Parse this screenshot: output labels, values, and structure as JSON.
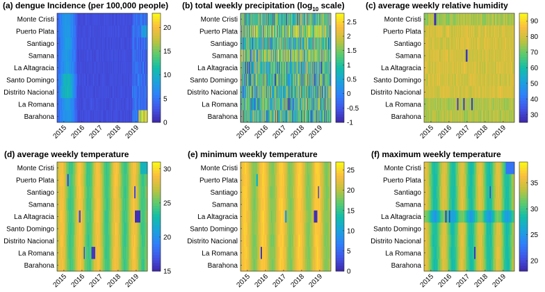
{
  "figure": {
    "background": "#ffffff",
    "colormap": [
      "#3e26a8",
      "#4254e6",
      "#2f7ffb",
      "#1ba3dc",
      "#12bea9",
      "#5ccb6d",
      "#c1c23e",
      "#fcbe3e",
      "#f9fb15"
    ]
  },
  "regions": [
    "Monte Cristi",
    "Puerto Plata",
    "Santiago",
    "Samana",
    "La Altagracia",
    "Santo Domingo",
    "Distrito Nacional",
    "La Romana",
    "Barahona"
  ],
  "years": [
    "2015",
    "2016",
    "2017",
    "2018",
    "2019"
  ],
  "chart_data": [
    {
      "id": "a",
      "type": "heatmap",
      "title_main": "(a) dengue Incidence (per 100,000 people)",
      "title_sub": "",
      "title_tail": "",
      "ylabels": [
        "Monte Cristi",
        "Puerto Plata",
        "Santiago",
        "Samana",
        "La Altagracia",
        "Santo Domingo",
        "Distrito Nacional",
        "La Romana",
        "Barahona"
      ],
      "xticks": [
        "2015",
        "2016",
        "2017",
        "2018",
        "2019"
      ],
      "clim": [
        0,
        23
      ],
      "cticks": [
        0,
        5,
        10,
        15,
        20
      ],
      "pattern": "dengue"
    },
    {
      "id": "b",
      "type": "heatmap",
      "title_main": "(b) total weekly precipitation (log",
      "title_sub": "10",
      "title_tail": " scale)",
      "ylabels": [
        "Monte Cristi",
        "Puerto Plata",
        "Santiago",
        "Samana",
        "La Altagracia",
        "Santo Domingo",
        "Distrito Nacional",
        "La Romana",
        "Barahona"
      ],
      "xticks": [
        "2015",
        "2016",
        "2017",
        "2018",
        "2019"
      ],
      "clim": [
        -1,
        2.8
      ],
      "cticks": [
        -1,
        -0.5,
        0,
        0.5,
        1,
        1.5,
        2,
        2.5
      ],
      "pattern": "precip"
    },
    {
      "id": "c",
      "type": "heatmap",
      "title_main": "(c) average weekly relative humidity",
      "title_sub": "",
      "title_tail": "",
      "ylabels": [
        "Monte Cristi",
        "Puerto Plata",
        "Santiago",
        "Samana",
        "La Altagracia",
        "Santo Domingo",
        "Distrito Nacional",
        "La Romana",
        "Barahona"
      ],
      "xticks": [
        "2015",
        "2016",
        "2017",
        "2018",
        "2019"
      ],
      "clim": [
        25,
        95
      ],
      "cticks": [
        30,
        40,
        50,
        60,
        70,
        80,
        90
      ],
      "pattern": "humidity"
    },
    {
      "id": "d",
      "type": "heatmap",
      "title_main": "(d) average weekly temperature",
      "title_sub": "",
      "title_tail": "",
      "ylabels": [
        "Monte Cristi",
        "Puerto Plata",
        "Santiago",
        "Samana",
        "La Altagracia",
        "Santo Domingo",
        "Distrito Nacional",
        "La Romana",
        "Barahona"
      ],
      "xticks": [
        "2015",
        "2016",
        "2017",
        "2018",
        "2019"
      ],
      "clim": [
        15,
        31
      ],
      "cticks": [
        15,
        20,
        25,
        30
      ],
      "pattern": "avgtemp"
    },
    {
      "id": "e",
      "type": "heatmap",
      "title_main": "(e) minimum weekly temperature",
      "title_sub": "",
      "title_tail": "",
      "ylabels": [
        "Monte Cristi",
        "Puerto Plata",
        "Santiago",
        "Samana",
        "La Altagracia",
        "Santo Domingo",
        "Distrito Nacional",
        "La Romana",
        "Barahona"
      ],
      "xticks": [
        "2015",
        "2016",
        "2017",
        "2018",
        "2019"
      ],
      "clim": [
        0,
        27
      ],
      "cticks": [
        0,
        5,
        10,
        15,
        20,
        25
      ],
      "pattern": "mintemp"
    },
    {
      "id": "f",
      "type": "heatmap",
      "title_main": "(f) maximum weekly temperature",
      "title_sub": "",
      "title_tail": "",
      "ylabels": [
        "Monte Cristi",
        "Puerto Plata",
        "Santiago",
        "Samana",
        "La Altagracia",
        "Santo Domingo",
        "Distrito Nacional",
        "La Romana",
        "Barahona"
      ],
      "xticks": [
        "2015",
        "2016",
        "2017",
        "2018",
        "2019"
      ],
      "clim": [
        18,
        39
      ],
      "cticks": [
        20,
        25,
        30,
        35
      ],
      "pattern": "maxtemp"
    }
  ]
}
